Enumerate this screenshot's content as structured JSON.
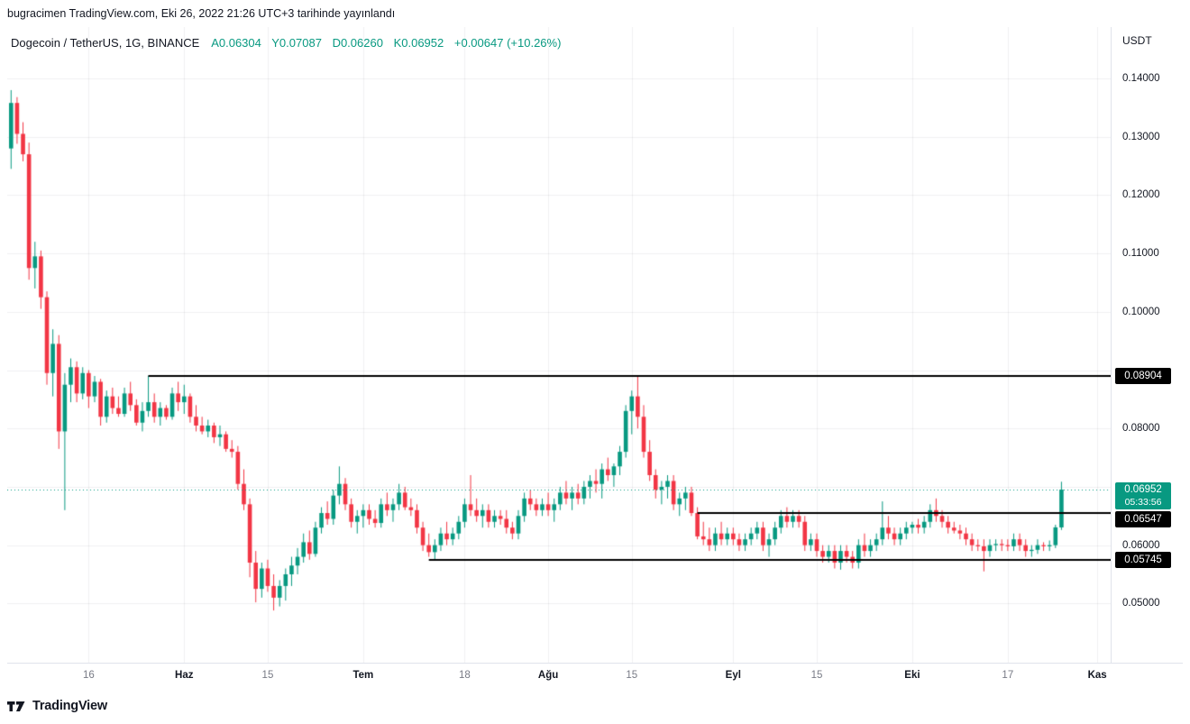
{
  "published_bar": {
    "text": "bugracimen TradingView.com, Eki 26, 2022 21:26 UTC+3 tarihinde yayınlandı"
  },
  "legend": {
    "symbol": "Dogecoin / TetherUS, 1G, BINANCE",
    "o": "A0.06304",
    "h": "Y0.07087",
    "l": "D0.06260",
    "c": "K0.06952",
    "change": "+0.00647 (+10.26%)"
  },
  "price_axis": {
    "currency": "USDT"
  },
  "footer": {
    "brand": "TradingView"
  },
  "chart_data": {
    "type": "candlestick",
    "title": "Dogecoin / TetherUS, 1G, BINANCE",
    "interval": "1G",
    "exchange": "BINANCE",
    "quote_currency": "USDT",
    "ylim": [
      0.03985,
      0.14881
    ],
    "grid": true,
    "colors": {
      "up": "#089981",
      "down": "#f23645",
      "level_line": "#000000",
      "current": "#089981"
    },
    "current": {
      "open": 0.06304,
      "high": 0.07087,
      "low": 0.0626,
      "close": 0.06952,
      "change": 0.00647,
      "change_pct": 10.26,
      "countdown": "05:33:56"
    },
    "y_ticks": [
      {
        "price": 0.14,
        "label": "0.14000"
      },
      {
        "price": 0.13,
        "label": "0.13000"
      },
      {
        "price": 0.12,
        "label": "0.12000"
      },
      {
        "price": 0.11,
        "label": "0.11000"
      },
      {
        "price": 0.1,
        "label": "0.10000"
      },
      {
        "price": 0.08,
        "label": "0.08000"
      },
      {
        "price": 0.06,
        "label": "0.06000"
      },
      {
        "price": 0.05,
        "label": "0.05000"
      }
    ],
    "axis_badges": [
      {
        "price": 0.08904,
        "label": "0.08904",
        "type": "level"
      },
      {
        "price": 0.06952,
        "label": "0.06952",
        "type": "current",
        "countdown": "05:33:56"
      },
      {
        "price": 0.06547,
        "label": "0.06547",
        "type": "level"
      },
      {
        "price": 0.05745,
        "label": "0.05745",
        "type": "level"
      }
    ],
    "levels": [
      {
        "price": 0.08904,
        "from_index": 23
      },
      {
        "price": 0.06547,
        "from_index": 115
      },
      {
        "price": 0.05745,
        "from_index": 70
      }
    ],
    "x_labels": [
      {
        "text": "16",
        "index": 13,
        "major": false
      },
      {
        "text": "Haz",
        "index": 29,
        "major": true
      },
      {
        "text": "15",
        "index": 43,
        "major": false
      },
      {
        "text": "Tem",
        "index": 59,
        "major": true
      },
      {
        "text": "18",
        "index": 76,
        "major": false
      },
      {
        "text": "Ağu",
        "index": 90,
        "major": true
      },
      {
        "text": "15",
        "index": 104,
        "major": false
      },
      {
        "text": "Eyl",
        "index": 121,
        "major": true
      },
      {
        "text": "15",
        "index": 135,
        "major": false
      },
      {
        "text": "Eki",
        "index": 151,
        "major": true
      },
      {
        "text": "17",
        "index": 167,
        "major": false
      },
      {
        "text": "Kas",
        "index": 182,
        "major": true
      }
    ],
    "candles": [
      [
        0.128,
        0.138,
        0.1245,
        0.1358
      ],
      [
        0.1358,
        0.1368,
        0.1288,
        0.1305
      ],
      [
        0.1305,
        0.1325,
        0.1258,
        0.127
      ],
      [
        0.127,
        0.129,
        0.1055,
        0.1075
      ],
      [
        0.1075,
        0.112,
        0.104,
        0.1095
      ],
      [
        0.1095,
        0.1105,
        0.1005,
        0.1025
      ],
      [
        0.1025,
        0.1035,
        0.0875,
        0.0895
      ],
      [
        0.0895,
        0.097,
        0.0855,
        0.0945
      ],
      [
        0.0945,
        0.096,
        0.0765,
        0.0795
      ],
      [
        0.0795,
        0.0895,
        0.066,
        0.0875
      ],
      [
        0.0875,
        0.092,
        0.0845,
        0.0905
      ],
      [
        0.0905,
        0.0915,
        0.0845,
        0.086
      ],
      [
        0.086,
        0.0905,
        0.085,
        0.0895
      ],
      [
        0.0895,
        0.09,
        0.0835,
        0.0855
      ],
      [
        0.0855,
        0.089,
        0.0845,
        0.088
      ],
      [
        0.088,
        0.0885,
        0.0805,
        0.082
      ],
      [
        0.082,
        0.0865,
        0.081,
        0.0855
      ],
      [
        0.0855,
        0.087,
        0.0825,
        0.0835
      ],
      [
        0.0835,
        0.0855,
        0.082,
        0.0825
      ],
      [
        0.0825,
        0.087,
        0.082,
        0.086
      ],
      [
        0.086,
        0.088,
        0.083,
        0.084
      ],
      [
        0.084,
        0.085,
        0.0805,
        0.081
      ],
      [
        0.081,
        0.0845,
        0.0795,
        0.083
      ],
      [
        0.083,
        0.08904,
        0.082,
        0.0845
      ],
      [
        0.0845,
        0.086,
        0.081,
        0.082
      ],
      [
        0.082,
        0.0845,
        0.0805,
        0.0835
      ],
      [
        0.0835,
        0.084,
        0.0815,
        0.082
      ],
      [
        0.082,
        0.087,
        0.0815,
        0.086
      ],
      [
        0.086,
        0.088,
        0.083,
        0.0845
      ],
      [
        0.0845,
        0.0875,
        0.0825,
        0.0855
      ],
      [
        0.0855,
        0.086,
        0.081,
        0.082
      ],
      [
        0.082,
        0.084,
        0.0795,
        0.0805
      ],
      [
        0.0805,
        0.082,
        0.079,
        0.0795
      ],
      [
        0.0795,
        0.0815,
        0.0785,
        0.0805
      ],
      [
        0.0805,
        0.081,
        0.0775,
        0.0785
      ],
      [
        0.0785,
        0.0805,
        0.077,
        0.079
      ],
      [
        0.079,
        0.0795,
        0.076,
        0.0765
      ],
      [
        0.0765,
        0.078,
        0.075,
        0.076
      ],
      [
        0.076,
        0.077,
        0.0695,
        0.0705
      ],
      [
        0.0705,
        0.073,
        0.066,
        0.067
      ],
      [
        0.067,
        0.068,
        0.0545,
        0.057
      ],
      [
        0.057,
        0.059,
        0.0502,
        0.0525
      ],
      [
        0.0525,
        0.057,
        0.051,
        0.056
      ],
      [
        0.056,
        0.0575,
        0.052,
        0.053
      ],
      [
        0.053,
        0.055,
        0.0488,
        0.051
      ],
      [
        0.051,
        0.054,
        0.0495,
        0.053
      ],
      [
        0.053,
        0.056,
        0.0505,
        0.055
      ],
      [
        0.055,
        0.058,
        0.053,
        0.0565
      ],
      [
        0.0565,
        0.0595,
        0.055,
        0.058
      ],
      [
        0.058,
        0.062,
        0.057,
        0.0605
      ],
      [
        0.0605,
        0.0625,
        0.0575,
        0.0585
      ],
      [
        0.0585,
        0.064,
        0.058,
        0.063
      ],
      [
        0.063,
        0.0665,
        0.062,
        0.0655
      ],
      [
        0.0655,
        0.0675,
        0.0635,
        0.0645
      ],
      [
        0.0645,
        0.0695,
        0.0635,
        0.0685
      ],
      [
        0.0685,
        0.0735,
        0.067,
        0.0705
      ],
      [
        0.0705,
        0.0715,
        0.066,
        0.067
      ],
      [
        0.067,
        0.068,
        0.063,
        0.064
      ],
      [
        0.064,
        0.066,
        0.062,
        0.065
      ],
      [
        0.065,
        0.067,
        0.063,
        0.066
      ],
      [
        0.066,
        0.067,
        0.0635,
        0.0645
      ],
      [
        0.0645,
        0.066,
        0.063,
        0.0638
      ],
      [
        0.0638,
        0.068,
        0.063,
        0.067
      ],
      [
        0.067,
        0.069,
        0.065,
        0.066
      ],
      [
        0.066,
        0.068,
        0.064,
        0.067
      ],
      [
        0.067,
        0.0705,
        0.066,
        0.069
      ],
      [
        0.069,
        0.07,
        0.066,
        0.0665
      ],
      [
        0.0665,
        0.068,
        0.065,
        0.066
      ],
      [
        0.066,
        0.067,
        0.062,
        0.063
      ],
      [
        0.063,
        0.064,
        0.059,
        0.06
      ],
      [
        0.06,
        0.062,
        0.058,
        0.0588
      ],
      [
        0.0588,
        0.061,
        0.05745,
        0.06
      ],
      [
        0.06,
        0.063,
        0.059,
        0.062
      ],
      [
        0.062,
        0.064,
        0.06,
        0.061
      ],
      [
        0.061,
        0.063,
        0.06,
        0.062
      ],
      [
        0.062,
        0.065,
        0.061,
        0.064
      ],
      [
        0.064,
        0.068,
        0.063,
        0.067
      ],
      [
        0.067,
        0.072,
        0.065,
        0.066
      ],
      [
        0.066,
        0.068,
        0.064,
        0.065
      ],
      [
        0.065,
        0.067,
        0.063,
        0.066
      ],
      [
        0.066,
        0.067,
        0.063,
        0.064
      ],
      [
        0.064,
        0.066,
        0.063,
        0.065
      ],
      [
        0.065,
        0.066,
        0.0635,
        0.0645
      ],
      [
        0.0645,
        0.066,
        0.062,
        0.063
      ],
      [
        0.063,
        0.064,
        0.061,
        0.062
      ],
      [
        0.062,
        0.066,
        0.061,
        0.065
      ],
      [
        0.065,
        0.069,
        0.064,
        0.068
      ],
      [
        0.068,
        0.0695,
        0.066,
        0.067
      ],
      [
        0.067,
        0.068,
        0.065,
        0.066
      ],
      [
        0.066,
        0.068,
        0.065,
        0.067
      ],
      [
        0.067,
        0.069,
        0.065,
        0.066
      ],
      [
        0.066,
        0.068,
        0.064,
        0.067
      ],
      [
        0.067,
        0.07,
        0.066,
        0.069
      ],
      [
        0.069,
        0.071,
        0.067,
        0.068
      ],
      [
        0.068,
        0.07,
        0.066,
        0.069
      ],
      [
        0.069,
        0.0705,
        0.067,
        0.068
      ],
      [
        0.068,
        0.071,
        0.067,
        0.07
      ],
      [
        0.07,
        0.072,
        0.068,
        0.071
      ],
      [
        0.071,
        0.073,
        0.069,
        0.0705
      ],
      [
        0.0705,
        0.074,
        0.068,
        0.073
      ],
      [
        0.073,
        0.075,
        0.071,
        0.072
      ],
      [
        0.072,
        0.074,
        0.07,
        0.0735
      ],
      [
        0.0735,
        0.077,
        0.072,
        0.076
      ],
      [
        0.076,
        0.084,
        0.075,
        0.083
      ],
      [
        0.083,
        0.0865,
        0.079,
        0.0855
      ],
      [
        0.0855,
        0.08904,
        0.08,
        0.082
      ],
      [
        0.082,
        0.084,
        0.075,
        0.076
      ],
      [
        0.076,
        0.078,
        0.071,
        0.072
      ],
      [
        0.072,
        0.073,
        0.068,
        0.0695
      ],
      [
        0.0695,
        0.071,
        0.067,
        0.07
      ],
      [
        0.07,
        0.072,
        0.068,
        0.071
      ],
      [
        0.071,
        0.072,
        0.066,
        0.067
      ],
      [
        0.067,
        0.069,
        0.065,
        0.068
      ],
      [
        0.068,
        0.07,
        0.066,
        0.069
      ],
      [
        0.069,
        0.07,
        0.065,
        0.0655
      ],
      [
        0.0655,
        0.0665,
        0.061,
        0.0615
      ],
      [
        0.0615,
        0.064,
        0.06,
        0.061
      ],
      [
        0.061,
        0.063,
        0.059,
        0.06
      ],
      [
        0.06,
        0.063,
        0.059,
        0.062
      ],
      [
        0.062,
        0.064,
        0.06,
        0.061
      ],
      [
        0.061,
        0.063,
        0.06,
        0.062
      ],
      [
        0.062,
        0.063,
        0.06,
        0.061
      ],
      [
        0.061,
        0.062,
        0.059,
        0.06
      ],
      [
        0.06,
        0.062,
        0.059,
        0.061
      ],
      [
        0.061,
        0.063,
        0.06,
        0.062
      ],
      [
        0.062,
        0.064,
        0.061,
        0.063
      ],
      [
        0.063,
        0.064,
        0.059,
        0.06
      ],
      [
        0.06,
        0.062,
        0.058,
        0.061
      ],
      [
        0.061,
        0.064,
        0.06,
        0.063
      ],
      [
        0.063,
        0.066,
        0.062,
        0.065
      ],
      [
        0.065,
        0.0665,
        0.063,
        0.064
      ],
      [
        0.064,
        0.066,
        0.063,
        0.065
      ],
      [
        0.065,
        0.066,
        0.063,
        0.064
      ],
      [
        0.064,
        0.065,
        0.059,
        0.06
      ],
      [
        0.06,
        0.062,
        0.059,
        0.061
      ],
      [
        0.061,
        0.062,
        0.058,
        0.059
      ],
      [
        0.059,
        0.06,
        0.057,
        0.058
      ],
      [
        0.058,
        0.06,
        0.057,
        0.059
      ],
      [
        0.059,
        0.06,
        0.056,
        0.057
      ],
      [
        0.057,
        0.06,
        0.0558,
        0.059
      ],
      [
        0.059,
        0.06,
        0.057,
        0.058
      ],
      [
        0.058,
        0.059,
        0.056,
        0.057
      ],
      [
        0.057,
        0.061,
        0.056,
        0.06
      ],
      [
        0.06,
        0.062,
        0.058,
        0.059
      ],
      [
        0.059,
        0.061,
        0.058,
        0.06
      ],
      [
        0.06,
        0.062,
        0.059,
        0.061
      ],
      [
        0.061,
        0.0675,
        0.06,
        0.063
      ],
      [
        0.063,
        0.065,
        0.061,
        0.062
      ],
      [
        0.062,
        0.063,
        0.06,
        0.061
      ],
      [
        0.061,
        0.063,
        0.06,
        0.062
      ],
      [
        0.062,
        0.064,
        0.061,
        0.063
      ],
      [
        0.063,
        0.064,
        0.062,
        0.0635
      ],
      [
        0.0635,
        0.0645,
        0.062,
        0.063
      ],
      [
        0.063,
        0.065,
        0.062,
        0.064
      ],
      [
        0.064,
        0.067,
        0.063,
        0.066
      ],
      [
        0.066,
        0.068,
        0.064,
        0.065
      ],
      [
        0.065,
        0.066,
        0.063,
        0.064
      ],
      [
        0.064,
        0.065,
        0.062,
        0.063
      ],
      [
        0.063,
        0.064,
        0.062,
        0.0625
      ],
      [
        0.0625,
        0.0635,
        0.061,
        0.062
      ],
      [
        0.062,
        0.063,
        0.06,
        0.061
      ],
      [
        0.061,
        0.062,
        0.059,
        0.06
      ],
      [
        0.06,
        0.061,
        0.059,
        0.0598
      ],
      [
        0.0598,
        0.061,
        0.0555,
        0.059
      ],
      [
        0.059,
        0.061,
        0.058,
        0.06
      ],
      [
        0.06,
        0.061,
        0.059,
        0.0602
      ],
      [
        0.0602,
        0.061,
        0.059,
        0.06
      ],
      [
        0.06,
        0.061,
        0.059,
        0.0598
      ],
      [
        0.0598,
        0.062,
        0.059,
        0.061
      ],
      [
        0.061,
        0.062,
        0.059,
        0.06
      ],
      [
        0.06,
        0.061,
        0.058,
        0.059
      ],
      [
        0.059,
        0.06,
        0.058,
        0.0592
      ],
      [
        0.0592,
        0.061,
        0.0585,
        0.06
      ],
      [
        0.06,
        0.0605,
        0.059,
        0.0598
      ],
      [
        0.0598,
        0.0608,
        0.059,
        0.06
      ],
      [
        0.06,
        0.0635,
        0.0595,
        0.06305
      ],
      [
        0.06304,
        0.07087,
        0.0626,
        0.06952
      ]
    ]
  }
}
